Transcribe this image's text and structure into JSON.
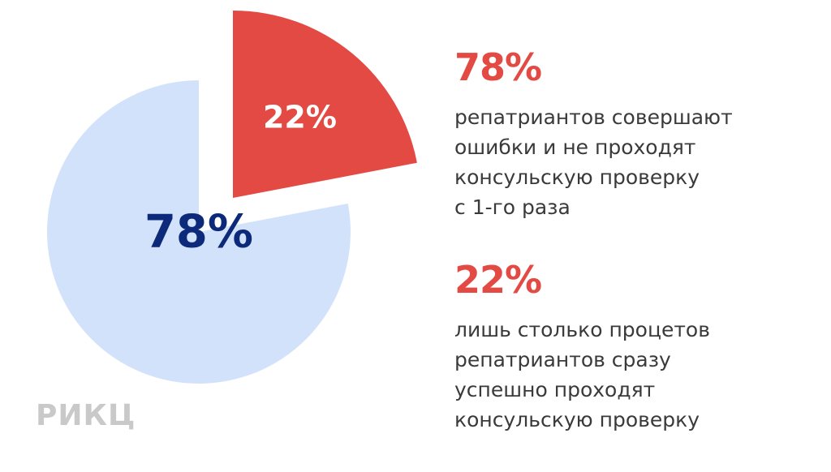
{
  "chart_data": {
    "type": "pie",
    "slices": [
      {
        "label": "78%",
        "value": 78,
        "color": "#d3e2fb",
        "label_color": "#0d2a7a",
        "exploded": false
      },
      {
        "label": "22%",
        "value": 22,
        "color": "#e34a44",
        "label_color": "#ffffff",
        "exploded": true
      }
    ],
    "title": "",
    "legend": "none"
  },
  "stats": [
    {
      "value": "78%",
      "text": "репатриантов совершают\nошибки и не проходят\nконсульскую проверку\nс 1-го раза",
      "color": "#e34a44"
    },
    {
      "value": "22%",
      "text": "лишь столько процетов\nрепатриантов сразу\nуспешно проходят\nконсульскую проверку",
      "color": "#e34a44"
    }
  ],
  "logo": {
    "text": "РИКЦ",
    "color": "#c9c9c9"
  }
}
